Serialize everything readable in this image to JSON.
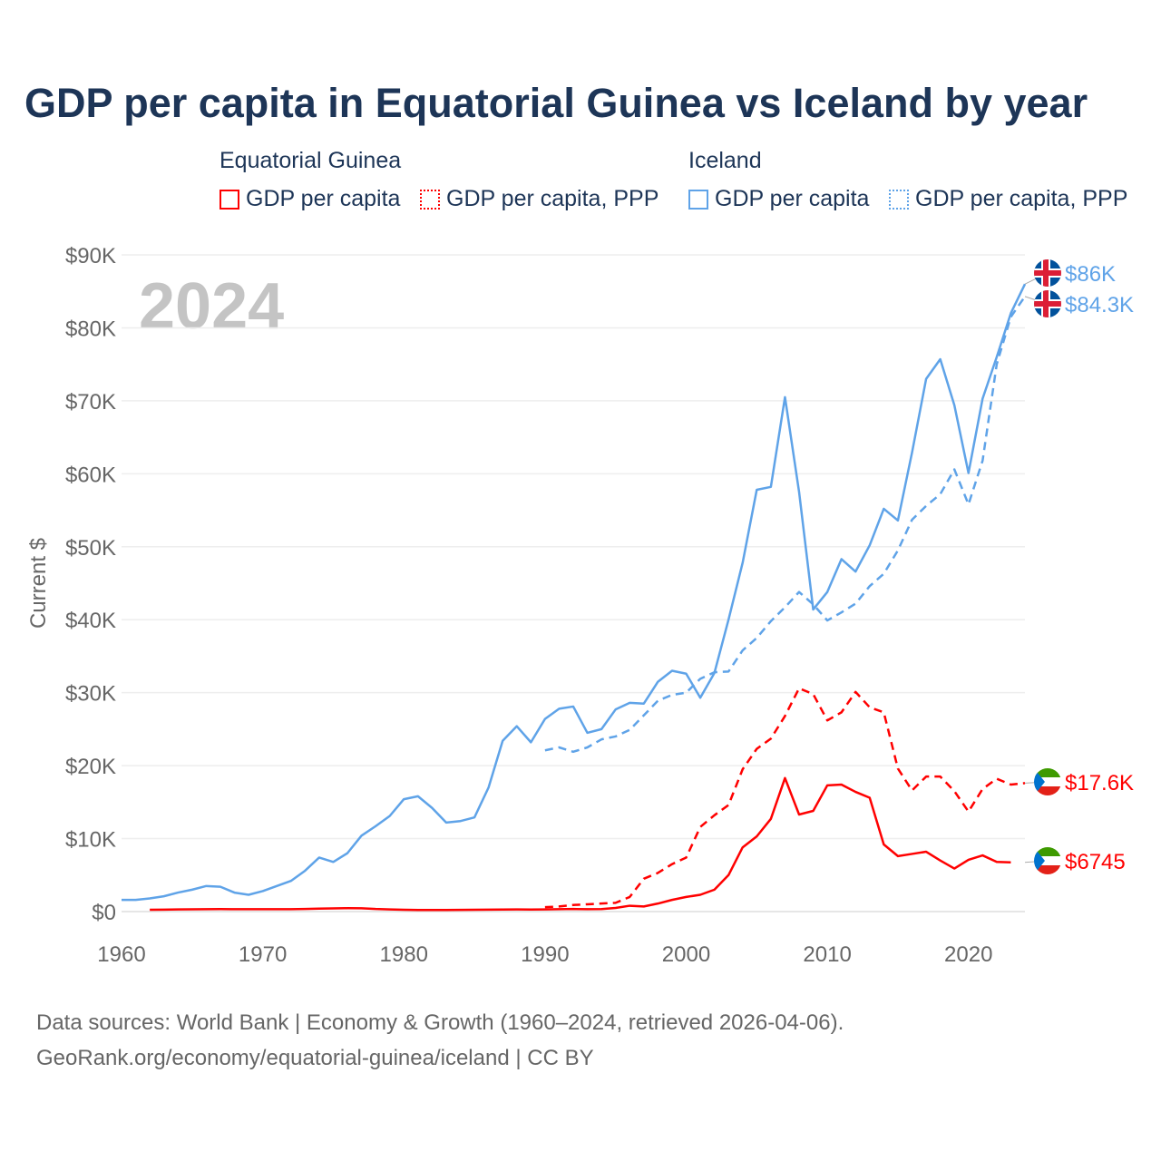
{
  "title": "GDP per capita in Equatorial Guinea vs Iceland by year",
  "legend": {
    "groups": [
      {
        "name": "Equatorial Guinea"
      },
      {
        "name": "Iceland"
      }
    ],
    "items": [
      {
        "label": "GDP per capita",
        "color": "#ff0000",
        "style": "solid"
      },
      {
        "label": "GDP per capita, PPP",
        "color": "#ff0000",
        "style": "dotted"
      },
      {
        "label": "GDP per capita",
        "color": "#5fa3e8",
        "style": "solid"
      },
      {
        "label": "GDP per capita, PPP",
        "color": "#5fa3e8",
        "style": "dotted"
      }
    ]
  },
  "year_watermark": "2024",
  "source": {
    "line1": "Data sources: World Bank | Economy & Growth (1960–2024, retrieved 2026-04-06).",
    "line2": "GeoRank.org/economy/equatorial-guinea/iceland | CC BY"
  },
  "chart_data": {
    "type": "line",
    "title": "GDP per capita in Equatorial Guinea vs Iceland by year",
    "xlabel": "",
    "ylabel": "Current $",
    "xlim": [
      1960,
      2024
    ],
    "ylim": [
      0,
      90000
    ],
    "xticks": [
      1960,
      1970,
      1980,
      1990,
      2000,
      2010,
      2020
    ],
    "xtick_labels": [
      "1960",
      "1970",
      "1980",
      "1990",
      "2000",
      "2010",
      "2020"
    ],
    "yticks": [
      0,
      10000,
      20000,
      30000,
      40000,
      50000,
      60000,
      70000,
      80000,
      90000
    ],
    "ytick_labels": [
      "$0",
      "$10K",
      "$20K",
      "$30K",
      "$40K",
      "$50K",
      "$60K",
      "$70K",
      "$80K",
      "$90K"
    ],
    "grid": true,
    "series": [
      {
        "name": "Iceland GDP per capita",
        "color": "#5fa3e8",
        "dash": false,
        "start": 1960,
        "end_label": "$86K",
        "values": [
          1.6,
          1.6,
          1.8,
          2.1,
          2.6,
          3.0,
          3.5,
          3.4,
          2.6,
          2.3,
          2.8,
          3.5,
          4.2,
          5.6,
          7.4,
          6.8,
          8.0,
          10.4,
          11.7,
          13.1,
          15.4,
          15.8,
          14.2,
          12.2,
          12.4,
          12.9,
          17.0,
          23.4,
          25.4,
          23.2,
          26.4,
          27.8,
          28.1,
          24.5,
          25.0,
          27.7,
          28.6,
          28.5,
          31.5,
          33.0,
          32.6,
          29.3,
          32.7,
          40.0,
          47.8,
          57.8,
          58.2,
          70.5,
          57.5,
          41.4,
          43.8,
          48.3,
          46.6,
          50.2,
          55.2,
          53.6,
          62.9,
          73.0,
          75.7,
          69.4,
          60.1,
          70.3,
          76.0,
          82.0,
          86.0
        ]
      },
      {
        "name": "Iceland GDP per capita, PPP",
        "color": "#5fa3e8",
        "dash": true,
        "start": 1990,
        "end_label": "$84.3K",
        "values": [
          22.1,
          22.5,
          21.9,
          22.5,
          23.6,
          24.0,
          24.9,
          26.9,
          28.9,
          29.7,
          30.0,
          31.9,
          32.8,
          32.9,
          35.8,
          37.5,
          39.8,
          41.7,
          43.8,
          42.1,
          39.9,
          41.0,
          42.2,
          44.6,
          46.3,
          49.5,
          53.7,
          55.6,
          57.2,
          60.6,
          55.8,
          61.8,
          75.0,
          81.5,
          84.3
        ]
      },
      {
        "name": "Equatorial Guinea GDP per capita, PPP",
        "color": "#ff0000",
        "dash": true,
        "start": 1990,
        "end_label": "$17.6K",
        "values": [
          0.6,
          0.7,
          0.9,
          1.0,
          1.1,
          1.2,
          2.0,
          4.5,
          5.3,
          6.5,
          7.4,
          11.6,
          13.2,
          14.6,
          19.5,
          22.3,
          23.7,
          26.8,
          30.6,
          29.8,
          26.2,
          27.3,
          30.1,
          28.0,
          27.3,
          19.6,
          16.6,
          18.5,
          18.5,
          16.5,
          13.7,
          16.8,
          18.2,
          17.4,
          17.6
        ]
      },
      {
        "name": "Equatorial Guinea GDP per capita",
        "color": "#ff0000",
        "dash": false,
        "start": 1962,
        "end_label": "$6745",
        "values": [
          0.25,
          0.27,
          0.29,
          0.31,
          0.33,
          0.34,
          0.33,
          0.33,
          0.33,
          0.33,
          0.33,
          0.36,
          0.4,
          0.44,
          0.46,
          0.45,
          0.35,
          0.3,
          0.25,
          0.22,
          0.22,
          0.22,
          0.23,
          0.25,
          0.26,
          0.28,
          0.29,
          0.28,
          0.3,
          0.33,
          0.35,
          0.32,
          0.34,
          0.5,
          0.8,
          0.7,
          1.1,
          1.6,
          2.0,
          2.3,
          3.0,
          5.0,
          8.8,
          10.3,
          12.7,
          18.3,
          13.3,
          13.8,
          17.3,
          17.4,
          16.4,
          15.6,
          9.2,
          7.6,
          7.9,
          8.2,
          7.0,
          5.9,
          7.1,
          7.7,
          6.8,
          6.745
        ]
      }
    ],
    "value_unit": "thousand USD"
  }
}
